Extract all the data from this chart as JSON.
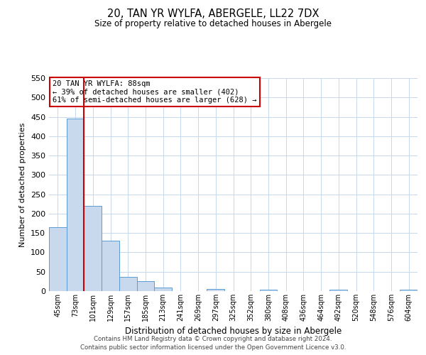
{
  "title": "20, TAN YR WYLFA, ABERGELE, LL22 7DX",
  "subtitle": "Size of property relative to detached houses in Abergele",
  "xlabel": "Distribution of detached houses by size in Abergele",
  "ylabel": "Number of detached properties",
  "bar_labels": [
    "45sqm",
    "73sqm",
    "101sqm",
    "129sqm",
    "157sqm",
    "185sqm",
    "213sqm",
    "241sqm",
    "269sqm",
    "297sqm",
    "325sqm",
    "352sqm",
    "380sqm",
    "408sqm",
    "436sqm",
    "464sqm",
    "492sqm",
    "520sqm",
    "548sqm",
    "576sqm",
    "604sqm"
  ],
  "bar_values": [
    165,
    445,
    220,
    130,
    36,
    25,
    10,
    0,
    0,
    5,
    0,
    0,
    3,
    0,
    0,
    0,
    3,
    0,
    0,
    0,
    3
  ],
  "bar_color": "#c8d9ed",
  "bar_edge_color": "#5b9bd5",
  "ylim": [
    0,
    550
  ],
  "yticks": [
    0,
    50,
    100,
    150,
    200,
    250,
    300,
    350,
    400,
    450,
    500,
    550
  ],
  "vline_x": 1.5,
  "vline_color": "#cc0000",
  "annotation_title": "20 TAN YR WYLFA: 88sqm",
  "annotation_line1": "← 39% of detached houses are smaller (402)",
  "annotation_line2": "61% of semi-detached houses are larger (628) →",
  "annotation_box_color": "#ffffff",
  "annotation_box_edge": "#cc0000",
  "footer1": "Contains HM Land Registry data © Crown copyright and database right 2024.",
  "footer2": "Contains public sector information licensed under the Open Government Licence v3.0.",
  "background_color": "#ffffff",
  "grid_color": "#c8d8ed"
}
